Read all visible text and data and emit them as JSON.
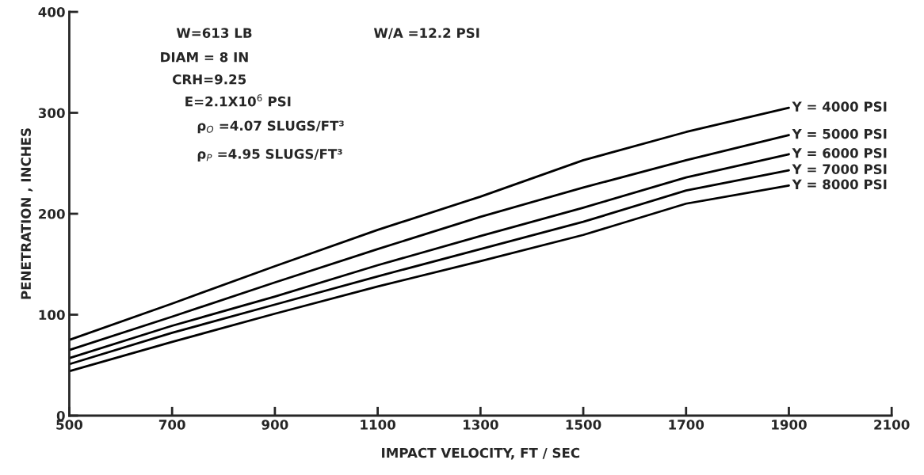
{
  "chart_data": {
    "type": "line",
    "xlabel": "IMPACT VELOCITY, FT / SEC",
    "ylabel": "PENETRATION , INCHES",
    "x": [
      500,
      700,
      900,
      1100,
      1300,
      1500,
      1700,
      1900
    ],
    "series": [
      {
        "name": "Y = 4000 PSI",
        "color": "#000000",
        "values": [
          75,
          111,
          148,
          184,
          217,
          253,
          281,
          305
        ]
      },
      {
        "name": "Y = 5000 PSI",
        "color": "#000000",
        "values": [
          65,
          98,
          132,
          165,
          197,
          226,
          253,
          278
        ]
      },
      {
        "name": "Y = 6000 PSI",
        "color": "#000000",
        "values": [
          57,
          89,
          118,
          149,
          178,
          206,
          236,
          259
        ]
      },
      {
        "name": "Y = 7000 PSI",
        "color": "#000000",
        "values": [
          51,
          82,
          110,
          138,
          165,
          192,
          223,
          243
        ]
      },
      {
        "name": "Y = 8000 PSI",
        "color": "#000000",
        "values": [
          44,
          73,
          101,
          128,
          153,
          179,
          210,
          228
        ]
      }
    ],
    "xlim": [
      500,
      2100
    ],
    "ylim": [
      0,
      400
    ],
    "xticks": [
      500,
      700,
      900,
      1100,
      1300,
      1500,
      1700,
      1900,
      2100
    ],
    "yticks": [
      0,
      100,
      200,
      300,
      400
    ],
    "grid": false,
    "legend": false,
    "marker": "none",
    "line_style": "solid",
    "annotations": [
      "W=613 LB",
      "W/A =12.2 PSI",
      "DIAM = 8 IN",
      "CRH=9.25",
      "E=2.1X10$^{6}$ PSI",
      "ρ$_{O}$ =4.07 SLUGS/FT³",
      "ρ$_{P}$ =4.95 SLUGS/FT³"
    ]
  }
}
